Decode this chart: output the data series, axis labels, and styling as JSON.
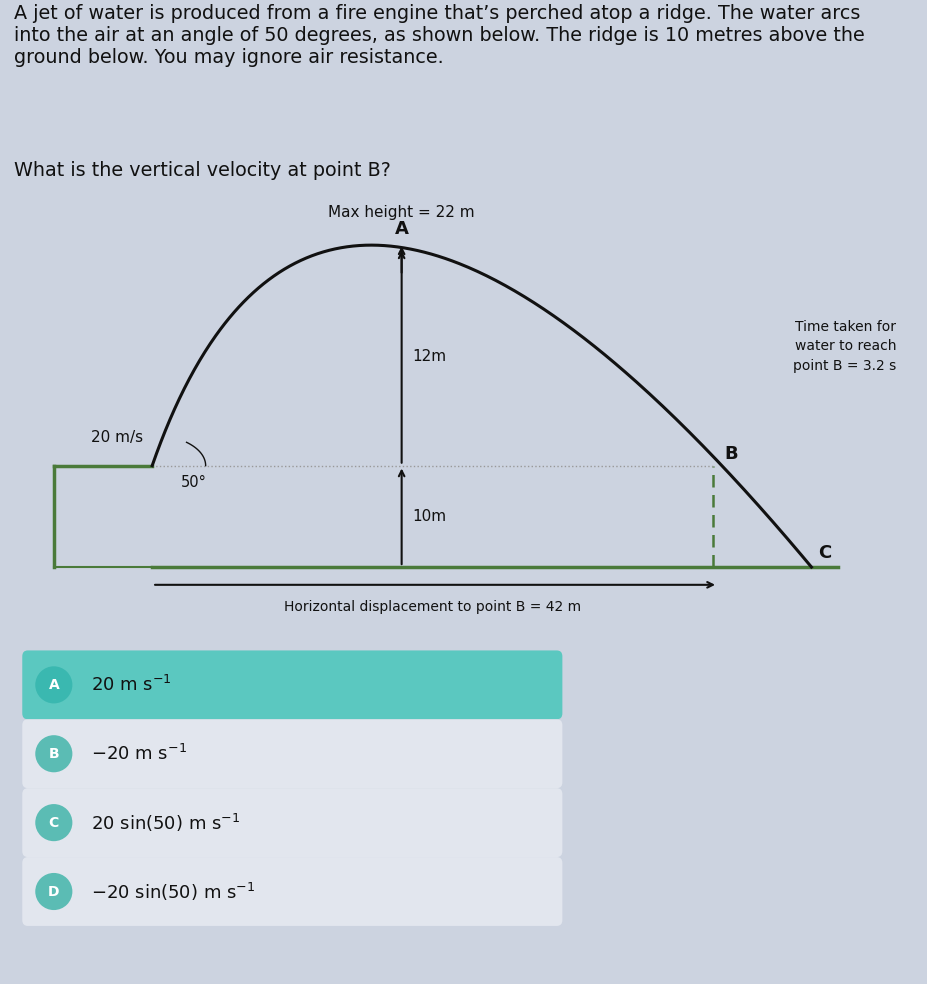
{
  "background_color": "#ccd3e0",
  "diagram_bg": "#d8dfe8",
  "title_text": "A jet of water is produced from a fire engine that’s perched atop a ridge. The water arcs\ninto the air at an angle of 50 degrees, as shown below. The ridge is 10 metres above the\nground below. You may ignore air resistance.",
  "question_text": "What is the vertical velocity at point B?",
  "max_height_label": "Max height = 22 m",
  "point_A_label": "A",
  "point_B_label": "B",
  "point_C_label": "C",
  "velocity_label": "20 m/s",
  "angle_label": "50°",
  "height_12m_label": "12m",
  "height_10m_label": "10m",
  "horiz_label": "Horizontal displacement to point B = 42 m",
  "time_label": "Time taken for\nwater to reach\npoint B = 3.2 s",
  "options": [
    {
      "letter": "A",
      "text": "20 m s$^{-1}$",
      "bg": "#5bc8c0",
      "text_color": "#111111",
      "letter_bg": "#3ab8b0"
    },
    {
      "letter": "B",
      "text": "$-$20 m s$^{-1}$",
      "bg": "#e2e6ee",
      "text_color": "#111111",
      "letter_bg": "#5bbcb4"
    },
    {
      "letter": "C",
      "text": "20 sin(50) m s$^{-1}$",
      "bg": "#e2e6ee",
      "text_color": "#111111",
      "letter_bg": "#5bbcb4"
    },
    {
      "letter": "D",
      "text": "$-$20 sin(50) m s$^{-1}$",
      "bg": "#e2e6ee",
      "text_color": "#111111",
      "letter_bg": "#5bbcb4"
    }
  ],
  "ridge_color": "#4a7a3a",
  "arc_color": "#111111",
  "dotted_line_color": "#999999",
  "ground_line_color": "#4a7a3a"
}
